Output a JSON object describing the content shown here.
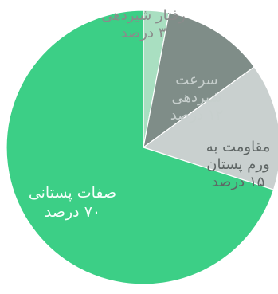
{
  "chart_data": {
    "type": "pie",
    "title": "",
    "slices": [
      {
        "label": "رفتار شیردهی",
        "value": 3,
        "value_label": "۳ درصد",
        "color": "#a9dfc1"
      },
      {
        "label": "سرعت شیردهی",
        "value": 12,
        "value_label": "۱۲ درصد",
        "color": "#7f8d88"
      },
      {
        "label": "مقاومت به ورم پستان",
        "value": 15,
        "value_label": "۱۵ درصد",
        "color": "#c9d0cf"
      },
      {
        "label": "صفات پستانی",
        "value": 70,
        "value_label": "۷۰ درصد",
        "color": "#3ccf86"
      }
    ],
    "legend": "none",
    "start_direction": "top",
    "direction": "clockwise"
  }
}
